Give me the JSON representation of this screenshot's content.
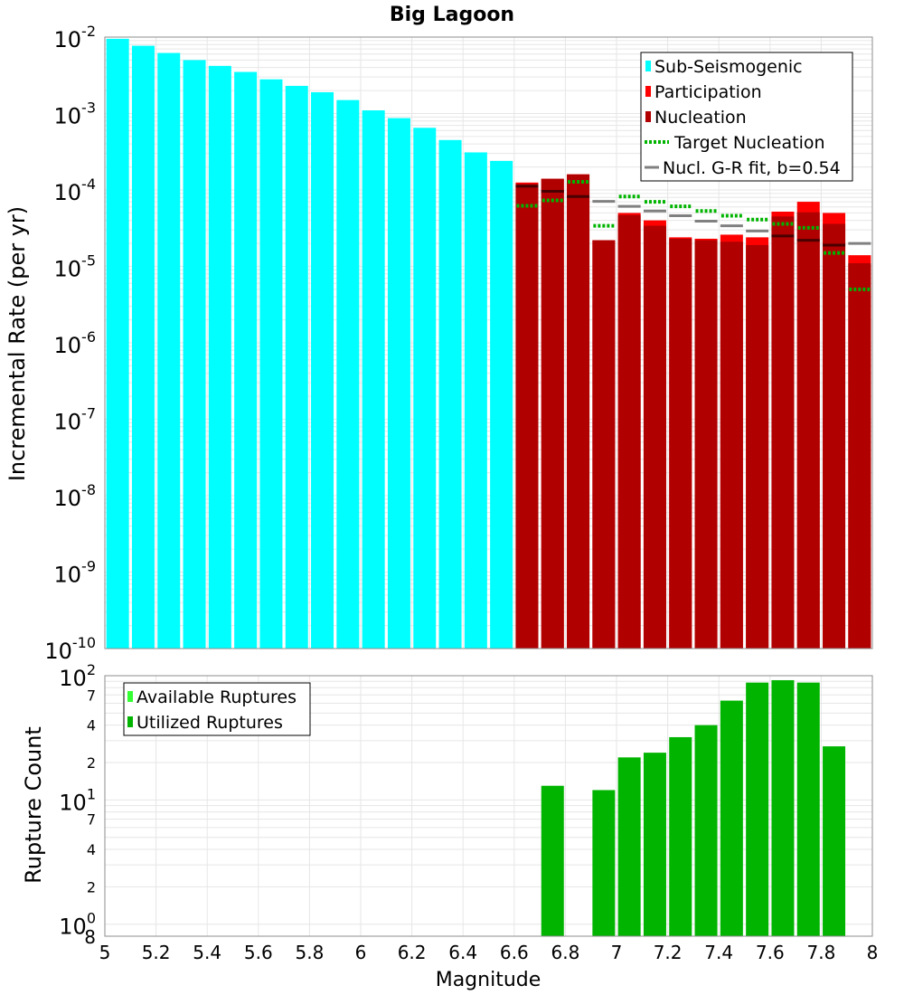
{
  "chart_data": [
    {
      "type": "bar",
      "title": "Big Lagoon",
      "ylabel": "Incremental Rate (per yr)",
      "xlabel": "",
      "yscale": "log",
      "ylim": [
        1e-10,
        0.01
      ],
      "xlim": [
        5.0,
        8.0
      ],
      "ytick_base": "10",
      "ytick_exponents": [
        "-10",
        "-9",
        "-8",
        "-7",
        "-6",
        "-5",
        "-4",
        "-3",
        "-2"
      ],
      "legend_position": "top-right",
      "legend": [
        {
          "label": "Sub-Seismogenic",
          "color": "#00ffff",
          "style": "box"
        },
        {
          "label": "Participation",
          "color": "#ff0000",
          "style": "box"
        },
        {
          "label": "Nucleation",
          "color": "#b00000",
          "style": "box"
        },
        {
          "label": "Target Nucleation",
          "color": "#00b400",
          "style": "dotted"
        },
        {
          "label": "Nucl. G-R fit, b=0.54",
          "color": "#808080",
          "style": "line"
        }
      ],
      "series": [
        {
          "name": "Sub-Seismogenic",
          "color": "#00ffff",
          "x": [
            5.05,
            5.15,
            5.25,
            5.35,
            5.45,
            5.55,
            5.65,
            5.75,
            5.85,
            5.95,
            6.05,
            6.15,
            6.25,
            6.35,
            6.45,
            6.55
          ],
          "values": [
            0.0095,
            0.0077,
            0.0062,
            0.005,
            0.0042,
            0.0035,
            0.0028,
            0.0023,
            0.0019,
            0.0015,
            0.0011,
            0.00087,
            0.00065,
            0.00045,
            0.00031,
            0.00024
          ]
        },
        {
          "name": "Participation",
          "color": "#ff0000",
          "x": [
            6.65,
            6.75,
            6.85,
            6.95,
            7.05,
            7.15,
            7.25,
            7.35,
            7.45,
            7.55,
            7.65,
            7.75,
            7.85,
            7.95
          ],
          "values": [
            0.000125,
            0.00014,
            0.00016,
            2.2e-05,
            5e-05,
            4e-05,
            2.4e-05,
            2.3e-05,
            2.6e-05,
            2.4e-05,
            5.2e-05,
            7e-05,
            5e-05,
            1.4e-05
          ]
        },
        {
          "name": "Nucleation",
          "color": "#b00000",
          "x": [
            6.65,
            6.75,
            6.85,
            6.95,
            7.05,
            7.15,
            7.25,
            7.35,
            7.45,
            7.55,
            7.65,
            7.75,
            7.85,
            7.95
          ],
          "values": [
            0.00012,
            0.00014,
            0.00016,
            2.2e-05,
            4.7e-05,
            3.4e-05,
            2.3e-05,
            2.2e-05,
            2.1e-05,
            1.9e-05,
            4.5e-05,
            5.1e-05,
            3.6e-05,
            1.1e-05
          ]
        },
        {
          "name": "Target Nucleation",
          "color": "#00b400",
          "x": [
            6.65,
            6.75,
            6.85,
            6.95,
            7.05,
            7.15,
            7.25,
            7.35,
            7.45,
            7.55,
            7.65,
            7.75,
            7.85,
            7.95
          ],
          "values": [
            6.2e-05,
            7.3e-05,
            0.000128,
            3.4e-05,
            8.2e-05,
            7e-05,
            6.1e-05,
            5.3e-05,
            4.6e-05,
            4.1e-05,
            3.6e-05,
            3.2e-05,
            1.5e-05,
            5e-06
          ]
        },
        {
          "name": "Nucl. G-R fit, b=0.54",
          "color": "#808080",
          "x": [
            6.65,
            6.75,
            6.85,
            6.95,
            7.05,
            7.15,
            7.25,
            7.35,
            7.45,
            7.55,
            7.65,
            7.75,
            7.85,
            7.95
          ],
          "values": [
            0.000112,
            9.6e-05,
            8.2e-05,
            7.1e-05,
            6.1e-05,
            5.3e-05,
            4.6e-05,
            3.9e-05,
            3.4e-05,
            2.9e-05,
            2.5e-05,
            2.2e-05,
            1.9e-05,
            2e-05
          ]
        }
      ]
    },
    {
      "type": "bar",
      "title": "",
      "xlabel": "Magnitude",
      "ylabel": "Rupture Count",
      "yscale": "log",
      "ylim": [
        0.8,
        100
      ],
      "xlim": [
        5.0,
        8.0
      ],
      "xtick_labels": [
        "5",
        "5.2",
        "5.4",
        "5.6",
        "5.8",
        "6",
        "6.2",
        "6.4",
        "6.6",
        "6.8",
        "7",
        "7.2",
        "7.4",
        "7.6",
        "7.8",
        "8"
      ],
      "ytick_labels": {
        "major": [
          {
            "value": 1,
            "base": "10",
            "exp": "0"
          },
          {
            "value": 10,
            "base": "10",
            "exp": "1"
          },
          {
            "value": 100,
            "base": "10",
            "exp": "2"
          }
        ],
        "minor": [
          {
            "value": 2,
            "label": "2"
          },
          {
            "value": 4,
            "label": "4"
          },
          {
            "value": 7,
            "label": "7"
          },
          {
            "value": 20,
            "label": "2"
          },
          {
            "value": 40,
            "label": "4"
          },
          {
            "value": 70,
            "label": "7"
          }
        ],
        "bottom_label": {
          "value": 0.8,
          "label": "8"
        }
      },
      "legend_position": "top-left",
      "legend": [
        {
          "label": "Available Ruptures",
          "color": "#33ff33",
          "style": "box"
        },
        {
          "label": "Utilized Ruptures",
          "color": "#00b400",
          "style": "box"
        }
      ],
      "series": [
        {
          "name": "Utilized Ruptures",
          "color": "#00b400",
          "x": [
            6.75,
            6.95,
            7.05,
            7.15,
            7.25,
            7.35,
            7.45,
            7.55,
            7.65,
            7.75,
            7.85
          ],
          "values": [
            13,
            12,
            22,
            24,
            32,
            40,
            63,
            88,
            92,
            88,
            27
          ]
        }
      ]
    }
  ]
}
